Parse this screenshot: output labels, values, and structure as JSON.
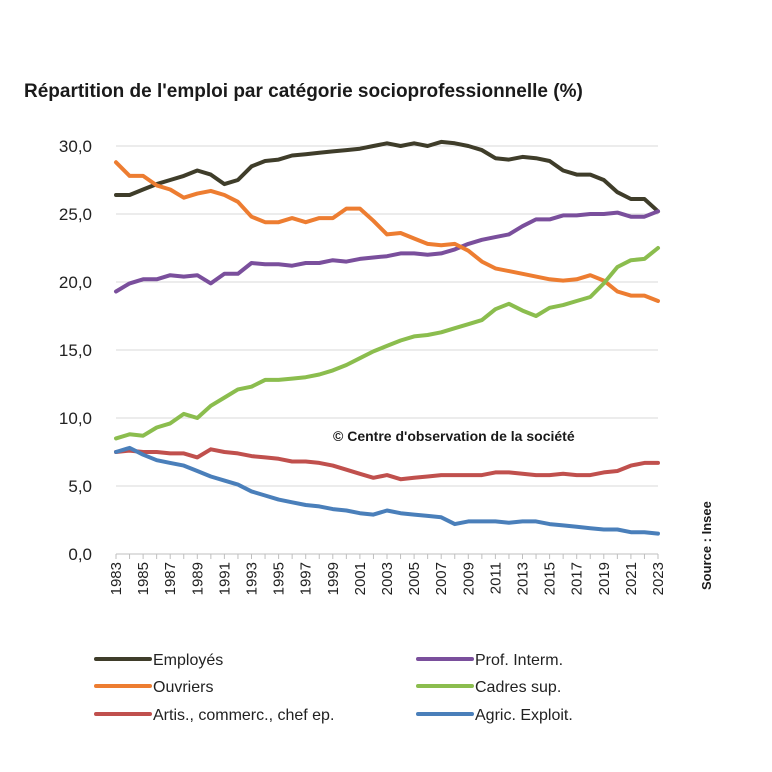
{
  "chart_data": {
    "type": "line",
    "title": "Répartition de l'emploi par catégorie socioprofessionnelle (%)",
    "xlabel": "",
    "ylabel": "",
    "ylim": [
      0,
      30
    ],
    "yticks": [
      "0,0",
      "5,0",
      "10,0",
      "15,0",
      "20,0",
      "25,0",
      "30,0"
    ],
    "x": [
      1983,
      1984,
      1985,
      1986,
      1987,
      1988,
      1989,
      1990,
      1991,
      1992,
      1993,
      1994,
      1995,
      1996,
      1997,
      1998,
      1999,
      2000,
      2001,
      2002,
      2003,
      2004,
      2005,
      2006,
      2007,
      2008,
      2009,
      2010,
      2011,
      2012,
      2013,
      2014,
      2015,
      2016,
      2017,
      2018,
      2019,
      2020,
      2021,
      2022,
      2023
    ],
    "xtick_labels": [
      "1983",
      "1985",
      "1987",
      "1989",
      "1991",
      "1993",
      "1995",
      "1997",
      "1999",
      "2001",
      "2003",
      "2005",
      "2007",
      "2009",
      "2011",
      "2013",
      "2015",
      "2017",
      "2019",
      "2021",
      "2023"
    ],
    "series": [
      {
        "name": "Employés",
        "color": "#3f3d2a",
        "values": [
          26.4,
          26.4,
          26.8,
          27.2,
          27.5,
          27.8,
          28.2,
          27.9,
          27.2,
          27.5,
          28.5,
          28.9,
          29.0,
          29.3,
          29.4,
          29.5,
          29.6,
          29.7,
          29.8,
          30.0,
          30.2,
          30.0,
          30.2,
          30.0,
          30.3,
          30.2,
          30.0,
          29.7,
          29.1,
          29.0,
          29.2,
          29.1,
          28.9,
          28.2,
          27.9,
          27.9,
          27.5,
          26.6,
          26.1,
          26.1,
          25.2
        ]
      },
      {
        "name": "Prof. Interm.",
        "color": "#7a4f9c",
        "values": [
          19.3,
          19.9,
          20.2,
          20.2,
          20.5,
          20.4,
          20.5,
          19.9,
          20.6,
          20.6,
          21.4,
          21.3,
          21.3,
          21.2,
          21.4,
          21.4,
          21.6,
          21.5,
          21.7,
          21.8,
          21.9,
          22.1,
          22.1,
          22.0,
          22.1,
          22.4,
          22.8,
          23.1,
          23.3,
          23.5,
          24.1,
          24.6,
          24.6,
          24.9,
          24.9,
          25.0,
          25.0,
          25.1,
          24.8,
          24.8,
          25.2
        ]
      },
      {
        "name": "Ouvriers",
        "color": "#ed7d31",
        "values": [
          28.8,
          27.8,
          27.8,
          27.1,
          26.8,
          26.2,
          26.5,
          26.7,
          26.4,
          25.9,
          24.8,
          24.4,
          24.4,
          24.7,
          24.4,
          24.7,
          24.7,
          25.4,
          25.4,
          24.5,
          23.5,
          23.6,
          23.2,
          22.8,
          22.7,
          22.8,
          22.3,
          21.5,
          21.0,
          20.8,
          20.6,
          20.4,
          20.2,
          20.1,
          20.2,
          20.5,
          20.1,
          19.3,
          19.0,
          19.0,
          18.6
        ]
      },
      {
        "name": "Cadres sup.",
        "color": "#8bbd4e",
        "values": [
          8.5,
          8.8,
          8.7,
          9.3,
          9.6,
          10.3,
          10.0,
          10.9,
          11.5,
          12.1,
          12.3,
          12.8,
          12.8,
          12.9,
          13.0,
          13.2,
          13.5,
          13.9,
          14.4,
          14.9,
          15.3,
          15.7,
          16.0,
          16.1,
          16.3,
          16.6,
          16.9,
          17.2,
          18.0,
          18.4,
          17.9,
          17.5,
          18.1,
          18.3,
          18.6,
          18.9,
          19.9,
          21.1,
          21.6,
          21.7,
          22.5
        ]
      },
      {
        "name": "Artis., commerc., chef ep.",
        "color": "#c0504d",
        "values": [
          7.5,
          7.6,
          7.5,
          7.5,
          7.4,
          7.4,
          7.1,
          7.7,
          7.5,
          7.4,
          7.2,
          7.1,
          7.0,
          6.8,
          6.8,
          6.7,
          6.5,
          6.2,
          5.9,
          5.6,
          5.8,
          5.5,
          5.6,
          5.7,
          5.8,
          5.8,
          5.8,
          5.8,
          6.0,
          6.0,
          5.9,
          5.8,
          5.8,
          5.9,
          5.8,
          5.8,
          6.0,
          6.1,
          6.5,
          6.7,
          6.7
        ]
      },
      {
        "name": "Agric. Exploit.",
        "color": "#4a7fba",
        "values": [
          7.5,
          7.8,
          7.3,
          6.9,
          6.7,
          6.5,
          6.1,
          5.7,
          5.4,
          5.1,
          4.6,
          4.3,
          4.0,
          3.8,
          3.6,
          3.5,
          3.3,
          3.2,
          3.0,
          2.9,
          3.2,
          3.0,
          2.9,
          2.8,
          2.7,
          2.2,
          2.4,
          2.4,
          2.4,
          2.3,
          2.4,
          2.4,
          2.2,
          2.1,
          2.0,
          1.9,
          1.8,
          1.8,
          1.6,
          1.6,
          1.5
        ]
      }
    ],
    "legend_position": "bottom",
    "annotation": "© Centre d'observation de la société",
    "source_note": "Source : Insee"
  }
}
